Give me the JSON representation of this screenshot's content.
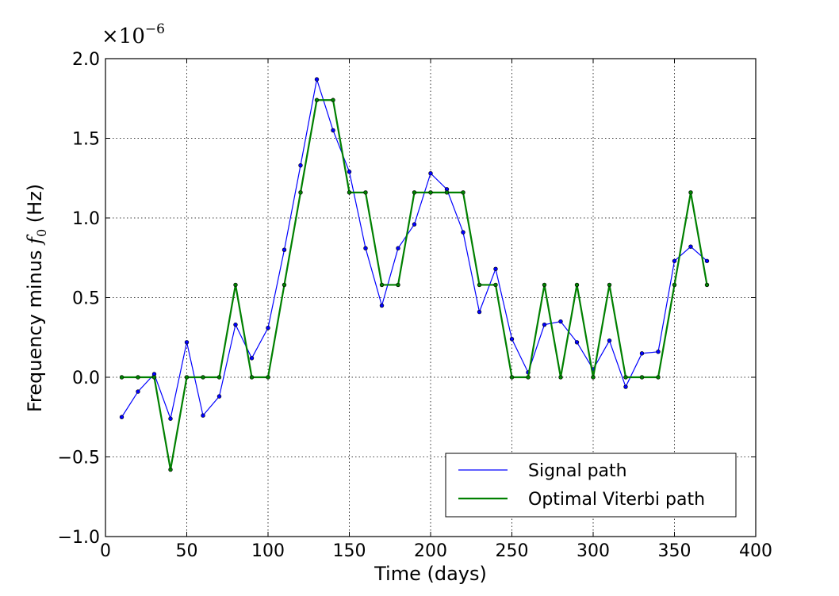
{
  "chart_data": {
    "type": "line",
    "title": "",
    "xlabel": "Time (days)",
    "ylabel_text": "Frequency minus",
    "ylabel_symbol": "f",
    "ylabel_subscript": "0",
    "ylabel_unit": "(Hz)",
    "y_multiplier_base": "×10",
    "y_multiplier_exponent": "−6",
    "xlim": [
      0,
      400
    ],
    "ylim": [
      -1.0,
      2.0
    ],
    "x_ticks": [
      0,
      50,
      100,
      150,
      200,
      250,
      300,
      350,
      400
    ],
    "y_ticks": [
      -1.0,
      -0.5,
      0.0,
      0.5,
      1.0,
      1.5,
      2.0
    ],
    "x_tick_labels": [
      "0",
      "50",
      "100",
      "150",
      "200",
      "250",
      "300",
      "350",
      "400"
    ],
    "y_tick_labels": [
      "−1.0",
      "−0.5",
      "0.0",
      "0.5",
      "1.0",
      "1.5",
      "2.0"
    ],
    "grid": true,
    "legend_position": "lower-right",
    "x": [
      10,
      20,
      30,
      40,
      50,
      60,
      70,
      80,
      90,
      100,
      110,
      120,
      130,
      140,
      150,
      160,
      170,
      180,
      190,
      200,
      210,
      220,
      230,
      240,
      250,
      260,
      270,
      280,
      290,
      300,
      310,
      320,
      330,
      340,
      350,
      360,
      370
    ],
    "series": [
      {
        "name": "Signal path",
        "color": "#0000ff",
        "values": [
          -0.25,
          -0.09,
          0.02,
          -0.26,
          0.22,
          -0.24,
          -0.12,
          0.33,
          0.12,
          0.31,
          0.8,
          1.33,
          1.87,
          1.55,
          1.29,
          0.81,
          0.45,
          0.81,
          0.96,
          1.28,
          1.18,
          0.91,
          0.41,
          0.68,
          0.24,
          0.03,
          0.33,
          0.35,
          0.22,
          0.05,
          0.23,
          -0.06,
          0.15,
          0.16,
          0.73,
          0.82,
          0.73
        ]
      },
      {
        "name": "Optimal Viterbi path",
        "color": "#008000",
        "values": [
          0.0,
          0.0,
          0.0,
          -0.58,
          0.0,
          0.0,
          0.0,
          0.58,
          0.0,
          0.0,
          0.58,
          1.16,
          1.74,
          1.74,
          1.16,
          1.16,
          0.58,
          0.58,
          1.16,
          1.16,
          1.16,
          1.16,
          0.58,
          0.58,
          0.0,
          0.0,
          0.58,
          0.0,
          0.58,
          0.0,
          0.58,
          0.0,
          0.0,
          0.0,
          0.58,
          1.16,
          0.58
        ]
      }
    ]
  }
}
